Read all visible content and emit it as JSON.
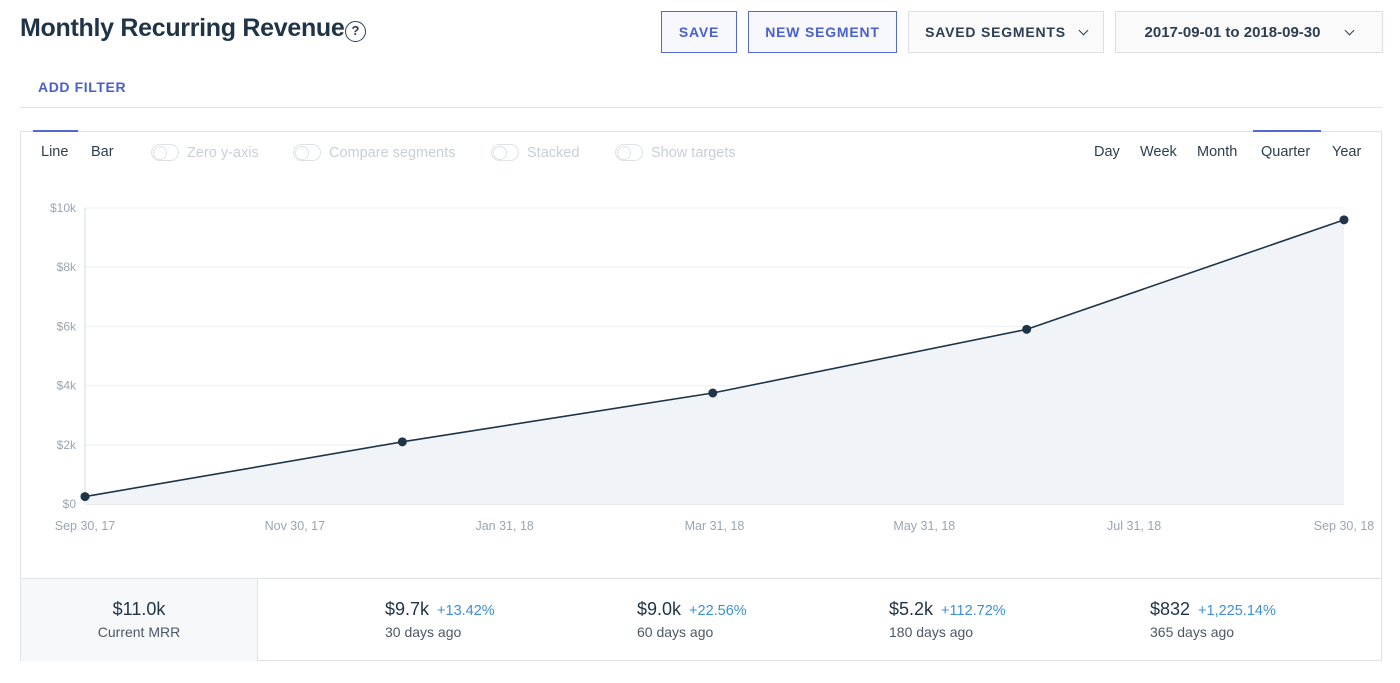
{
  "header": {
    "title": "Monthly Recurring Revenue",
    "help_icon": "?",
    "save_label": "SAVE",
    "new_segment_label": "NEW SEGMENT",
    "saved_segments_label": "SAVED SEGMENTS",
    "date_range": "2017-09-01 to 2018-09-30",
    "add_filter_label": "ADD FILTER"
  },
  "chart_controls": {
    "chart_types": [
      "Line",
      "Bar"
    ],
    "active_chart_type": "Line",
    "toggles": [
      "Zero y-axis",
      "Compare segments",
      "Stacked",
      "Show targets"
    ],
    "intervals": [
      "Day",
      "Week",
      "Month",
      "Quarter",
      "Year"
    ],
    "active_interval": "Quarter"
  },
  "chart_data": {
    "type": "area",
    "x_ticks": [
      "Sep 30, 17",
      "Nov 30, 17",
      "Jan 31, 18",
      "Mar 31, 18",
      "May 31, 18",
      "Jul 31, 18",
      "Sep 30, 18"
    ],
    "y_ticks": [
      "$0",
      "$2k",
      "$4k",
      "$6k",
      "$8k",
      "$10k"
    ],
    "ylim": [
      0,
      10000
    ],
    "x": [
      "2017-09-30",
      "2017-12-31",
      "2018-03-31",
      "2018-06-30",
      "2018-09-30"
    ],
    "values": [
      250,
      2100,
      3750,
      5900,
      9600
    ],
    "line_color": "#1f3447",
    "fill_color": "#f0f4f8",
    "grid": true
  },
  "stats": {
    "current": {
      "value": "$11.0k",
      "label": "Current MRR"
    },
    "history": [
      {
        "value": "$9.7k",
        "change": "+13.42%",
        "label": "30 days ago"
      },
      {
        "value": "$9.0k",
        "change": "+22.56%",
        "label": "60 days ago"
      },
      {
        "value": "$5.2k",
        "change": "+112.72%",
        "label": "180 days ago"
      },
      {
        "value": "$832",
        "change": "+1,225.14%",
        "label": "365 days ago"
      }
    ]
  },
  "colors": {
    "accent": "#4a5fcf",
    "positive_change": "#3b8fd9"
  }
}
